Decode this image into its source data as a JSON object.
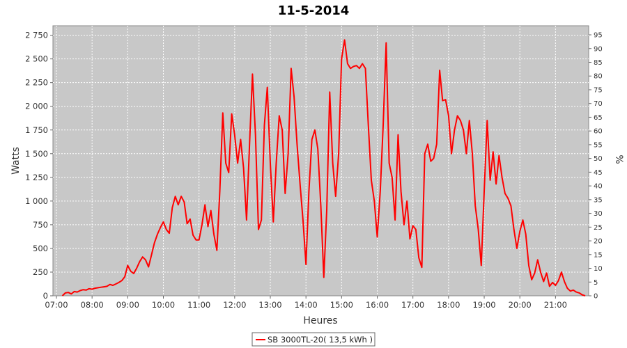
{
  "chart_data": {
    "type": "line",
    "title": "11-5-2014",
    "xlabel": "Heures",
    "ylabel": "Watts",
    "ylabel_right": "%",
    "xlim": [
      "07:00",
      "21:50"
    ],
    "ylim": [
      0,
      2850
    ],
    "ylim_right": [
      0,
      98.3
    ],
    "x_ticks": [
      "07:00",
      "08:00",
      "09:00",
      "10:00",
      "11:00",
      "12:00",
      "13:00",
      "14:00",
      "15:00",
      "16:00",
      "17:00",
      "18:00",
      "19:00",
      "20:00",
      "21:00"
    ],
    "y_ticks": [
      "0",
      "250",
      "500",
      "750",
      "1 000",
      "1 250",
      "1 500",
      "1 750",
      "2 000",
      "2 250",
      "2 500",
      "2 750"
    ],
    "y_ticks_right": [
      "0",
      "5",
      "10",
      "15",
      "20",
      "25",
      "30",
      "35",
      "40",
      "45",
      "50",
      "55",
      "60",
      "65",
      "70",
      "75",
      "80",
      "85",
      "90",
      "95"
    ],
    "grid": true,
    "legend_position": "bottom",
    "series": [
      {
        "name": "SB 3000TL-20( 13,5 kWh )",
        "color": "#ff0000",
        "points": [
          [
            "07:10",
            0
          ],
          [
            "07:15",
            30
          ],
          [
            "07:20",
            35
          ],
          [
            "07:25",
            20
          ],
          [
            "07:30",
            45
          ],
          [
            "07:35",
            40
          ],
          [
            "07:40",
            55
          ],
          [
            "07:45",
            65
          ],
          [
            "07:50",
            60
          ],
          [
            "07:55",
            75
          ],
          [
            "08:00",
            70
          ],
          [
            "08:05",
            80
          ],
          [
            "08:10",
            85
          ],
          [
            "08:15",
            90
          ],
          [
            "08:20",
            95
          ],
          [
            "08:25",
            100
          ],
          [
            "08:30",
            120
          ],
          [
            "08:35",
            110
          ],
          [
            "08:40",
            125
          ],
          [
            "08:45",
            140
          ],
          [
            "08:50",
            160
          ],
          [
            "08:55",
            200
          ],
          [
            "09:00",
            320
          ],
          [
            "09:05",
            260
          ],
          [
            "09:10",
            235
          ],
          [
            "09:15",
            290
          ],
          [
            "09:20",
            360
          ],
          [
            "09:25",
            410
          ],
          [
            "09:30",
            380
          ],
          [
            "09:35",
            305
          ],
          [
            "09:40",
            430
          ],
          [
            "09:45",
            560
          ],
          [
            "09:50",
            650
          ],
          [
            "09:55",
            720
          ],
          [
            "10:00",
            780
          ],
          [
            "10:05",
            700
          ],
          [
            "10:10",
            660
          ],
          [
            "10:15",
            930
          ],
          [
            "10:20",
            1050
          ],
          [
            "10:25",
            960
          ],
          [
            "10:30",
            1050
          ],
          [
            "10:35",
            990
          ],
          [
            "10:40",
            760
          ],
          [
            "10:45",
            810
          ],
          [
            "10:50",
            640
          ],
          [
            "10:55",
            590
          ],
          [
            "11:00",
            590
          ],
          [
            "11:05",
            750
          ],
          [
            "11:10",
            960
          ],
          [
            "11:15",
            730
          ],
          [
            "11:20",
            900
          ],
          [
            "11:25",
            650
          ],
          [
            "11:30",
            480
          ],
          [
            "11:35",
            1100
          ],
          [
            "11:40",
            1930
          ],
          [
            "11:45",
            1400
          ],
          [
            "11:50",
            1300
          ],
          [
            "11:55",
            1920
          ],
          [
            "12:00",
            1700
          ],
          [
            "12:05",
            1400
          ],
          [
            "12:10",
            1650
          ],
          [
            "12:15",
            1350
          ],
          [
            "12:20",
            800
          ],
          [
            "12:25",
            1600
          ],
          [
            "12:30",
            2340
          ],
          [
            "12:35",
            1700
          ],
          [
            "12:40",
            700
          ],
          [
            "12:45",
            800
          ],
          [
            "12:50",
            1800
          ],
          [
            "12:55",
            2200
          ],
          [
            "13:00",
            1400
          ],
          [
            "13:05",
            780
          ],
          [
            "13:10",
            1400
          ],
          [
            "13:15",
            1900
          ],
          [
            "13:20",
            1750
          ],
          [
            "13:25",
            1080
          ],
          [
            "13:30",
            1500
          ],
          [
            "13:35",
            2400
          ],
          [
            "13:40",
            2100
          ],
          [
            "13:45",
            1600
          ],
          [
            "13:50",
            1180
          ],
          [
            "13:55",
            800
          ],
          [
            "14:00",
            330
          ],
          [
            "14:05",
            1100
          ],
          [
            "14:10",
            1650
          ],
          [
            "14:15",
            1750
          ],
          [
            "14:20",
            1550
          ],
          [
            "14:25",
            950
          ],
          [
            "14:30",
            195
          ],
          [
            "14:35",
            900
          ],
          [
            "14:40",
            2150
          ],
          [
            "14:45",
            1400
          ],
          [
            "14:50",
            1050
          ],
          [
            "14:55",
            1500
          ],
          [
            "15:00",
            2500
          ],
          [
            "15:05",
            2700
          ],
          [
            "15:10",
            2450
          ],
          [
            "15:15",
            2400
          ],
          [
            "15:20",
            2420
          ],
          [
            "15:25",
            2430
          ],
          [
            "15:30",
            2400
          ],
          [
            "15:35",
            2450
          ],
          [
            "15:40",
            2400
          ],
          [
            "15:45",
            1800
          ],
          [
            "15:50",
            1220
          ],
          [
            "15:55",
            1000
          ],
          [
            "16:00",
            620
          ],
          [
            "16:05",
            1100
          ],
          [
            "16:10",
            1800
          ],
          [
            "16:15",
            2670
          ],
          [
            "16:20",
            1400
          ],
          [
            "16:25",
            1250
          ],
          [
            "16:30",
            800
          ],
          [
            "16:35",
            1700
          ],
          [
            "16:40",
            1100
          ],
          [
            "16:45",
            750
          ],
          [
            "16:50",
            1000
          ],
          [
            "16:55",
            600
          ],
          [
            "17:00",
            740
          ],
          [
            "17:05",
            700
          ],
          [
            "17:10",
            400
          ],
          [
            "17:15",
            300
          ],
          [
            "17:20",
            1500
          ],
          [
            "17:25",
            1600
          ],
          [
            "17:30",
            1420
          ],
          [
            "17:35",
            1450
          ],
          [
            "17:40",
            1600
          ],
          [
            "17:45",
            2380
          ],
          [
            "17:50",
            2060
          ],
          [
            "17:55",
            2070
          ],
          [
            "18:00",
            1900
          ],
          [
            "18:05",
            1500
          ],
          [
            "18:10",
            1750
          ],
          [
            "18:15",
            1900
          ],
          [
            "18:20",
            1850
          ],
          [
            "18:25",
            1750
          ],
          [
            "18:30",
            1500
          ],
          [
            "18:35",
            1850
          ],
          [
            "18:40",
            1500
          ],
          [
            "18:45",
            950
          ],
          [
            "18:50",
            700
          ],
          [
            "18:55",
            320
          ],
          [
            "19:00",
            1100
          ],
          [
            "19:05",
            1850
          ],
          [
            "19:10",
            1220
          ],
          [
            "19:15",
            1520
          ],
          [
            "19:20",
            1180
          ],
          [
            "19:25",
            1480
          ],
          [
            "19:30",
            1250
          ],
          [
            "19:35",
            1080
          ],
          [
            "19:40",
            1030
          ],
          [
            "19:45",
            950
          ],
          [
            "19:50",
            700
          ],
          [
            "19:55",
            500
          ],
          [
            "20:00",
            680
          ],
          [
            "20:05",
            800
          ],
          [
            "20:10",
            650
          ],
          [
            "20:15",
            320
          ],
          [
            "20:20",
            170
          ],
          [
            "20:25",
            240
          ],
          [
            "20:30",
            380
          ],
          [
            "20:35",
            250
          ],
          [
            "20:40",
            150
          ],
          [
            "20:45",
            240
          ],
          [
            "20:50",
            100
          ],
          [
            "20:55",
            140
          ],
          [
            "21:00",
            110
          ],
          [
            "21:05",
            160
          ],
          [
            "21:10",
            250
          ],
          [
            "21:15",
            150
          ],
          [
            "21:20",
            80
          ],
          [
            "21:25",
            50
          ],
          [
            "21:30",
            60
          ],
          [
            "21:35",
            40
          ],
          [
            "21:40",
            30
          ],
          [
            "21:45",
            10
          ],
          [
            "21:50",
            0
          ]
        ]
      }
    ]
  }
}
